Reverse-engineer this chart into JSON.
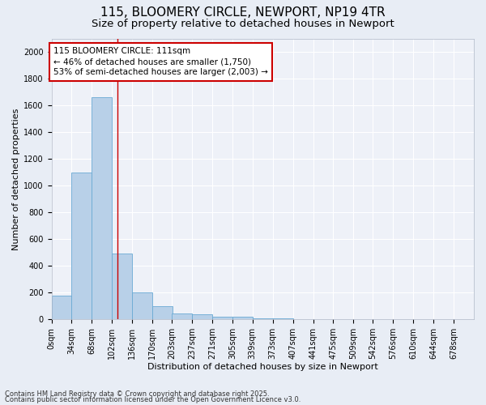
{
  "title1": "115, BLOOMERY CIRCLE, NEWPORT, NP19 4TR",
  "title2": "Size of property relative to detached houses in Newport",
  "xlabel": "Distribution of detached houses by size in Newport",
  "ylabel": "Number of detached properties",
  "annotation_text": "115 BLOOMERY CIRCLE: 111sqm\n← 46% of detached houses are smaller (1,750)\n53% of semi-detached houses are larger (2,003) →",
  "footer1": "Contains HM Land Registry data © Crown copyright and database right 2025.",
  "footer2": "Contains public sector information licensed under the Open Government Licence v3.0.",
  "bar_left_edges": [
    0,
    34,
    68,
    102,
    136,
    170,
    203,
    237,
    271,
    305,
    339,
    373,
    407,
    441,
    475,
    509,
    542,
    576,
    610,
    644
  ],
  "bar_heights": [
    175,
    1100,
    1660,
    490,
    200,
    100,
    45,
    40,
    22,
    22,
    10,
    5,
    0,
    0,
    0,
    0,
    0,
    0,
    0,
    0
  ],
  "bin_width": 34,
  "bar_color": "#b8d0e8",
  "bar_edge_color": "#6aaad4",
  "vline_x": 111,
  "vline_color": "#cc0000",
  "annotation_box_color": "#cc0000",
  "annotation_text_color": "#000000",
  "ylim": [
    0,
    2100
  ],
  "yticks": [
    0,
    200,
    400,
    600,
    800,
    1000,
    1200,
    1400,
    1600,
    1800,
    2000
  ],
  "bg_color": "#e8edf5",
  "plot_bg_color": "#eef1f8",
  "tick_labels": [
    "0sqm",
    "34sqm",
    "68sqm",
    "102sqm",
    "136sqm",
    "170sqm",
    "203sqm",
    "237sqm",
    "271sqm",
    "305sqm",
    "339sqm",
    "373sqm",
    "407sqm",
    "441sqm",
    "475sqm",
    "509sqm",
    "542sqm",
    "576sqm",
    "610sqm",
    "644sqm",
    "678sqm"
  ],
  "grid_color": "#ffffff",
  "title_fontsize": 11,
  "subtitle_fontsize": 9.5,
  "axis_label_fontsize": 8,
  "tick_fontsize": 7,
  "annotation_fontsize": 7.5,
  "footer_fontsize": 6,
  "xlim_max": 712
}
